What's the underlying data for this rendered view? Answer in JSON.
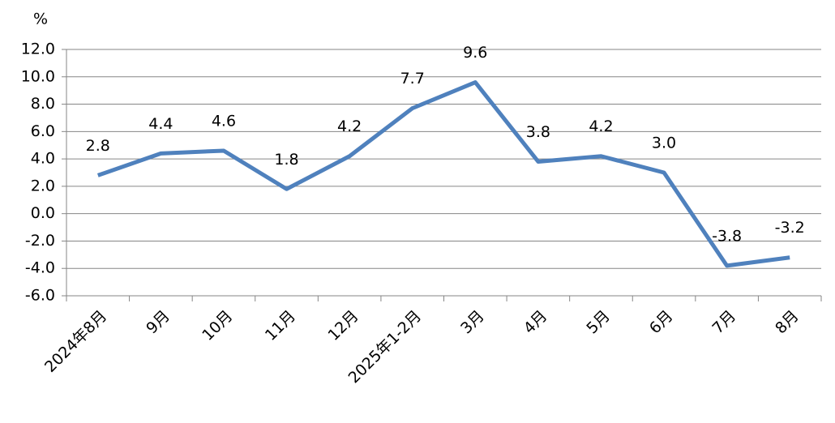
{
  "chart_data": {
    "type": "line",
    "y_label": "%",
    "categories": [
      "2024年8月",
      "9月",
      "10月",
      "11月",
      "12月",
      "2025年1-2月",
      "3月",
      "4月",
      "5月",
      "6月",
      "7月",
      "8月"
    ],
    "series": [
      {
        "color": "#4f81bd",
        "values": [
          2.8,
          4.4,
          4.6,
          1.8,
          4.2,
          7.7,
          9.6,
          3.8,
          4.2,
          3.0,
          -3.8,
          -3.2
        ],
        "value_labels": [
          "2.8",
          "4.4",
          "4.6",
          "1.8",
          "4.2",
          "7.7",
          "9.6",
          "3.8",
          "4.2",
          "3.0",
          "-3.8",
          "-3.2"
        ]
      }
    ],
    "ylim": [
      -6,
      12
    ],
    "yticks": [
      {
        "value": -6,
        "label": "-6.0"
      },
      {
        "value": -4,
        "label": "-4.0"
      },
      {
        "value": -2,
        "label": "-2.0"
      },
      {
        "value": 0,
        "label": "0.0"
      },
      {
        "value": 2,
        "label": "2.0"
      },
      {
        "value": 4,
        "label": "4.0"
      },
      {
        "value": 6,
        "label": "6.0"
      },
      {
        "value": 8,
        "label": "8.0"
      },
      {
        "value": 10,
        "label": "10.0"
      },
      {
        "value": 12,
        "label": "12.0"
      }
    ],
    "grid": true
  }
}
